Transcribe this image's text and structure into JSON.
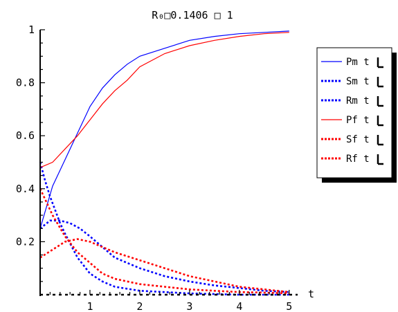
{
  "chart_data": {
    "type": "line",
    "title": "R₀□0.1406 □ 1",
    "xlabel": "t",
    "ylabel": "",
    "xlim": [
      0,
      5.1
    ],
    "ylim": [
      0,
      1
    ],
    "x_ticks": [
      1,
      2,
      3,
      4,
      5
    ],
    "x_tick_labels": [
      "1",
      "2",
      "3",
      "4",
      "5"
    ],
    "y_ticks": [
      0.2,
      0.4,
      0.6,
      0.8,
      1
    ],
    "y_tick_labels": [
      "0.2",
      "0.4",
      "0.6",
      "0.8",
      "1"
    ],
    "legend_position": "right",
    "colors": {
      "blue": "#0000ff",
      "red": "#ff0000"
    },
    "series": [
      {
        "name": "Pm t",
        "color": "#0000ff",
        "style": "solid",
        "x": [
          0,
          0.25,
          0.5,
          0.75,
          1,
          1.25,
          1.5,
          1.75,
          2,
          2.5,
          3,
          3.5,
          4,
          4.5,
          5
        ],
        "y": [
          0.25,
          0.41,
          0.51,
          0.61,
          0.71,
          0.78,
          0.83,
          0.87,
          0.9,
          0.93,
          0.96,
          0.975,
          0.985,
          0.99,
          0.995
        ]
      },
      {
        "name": "Sm t",
        "color": "#0000ff",
        "style": "dashed",
        "x": [
          0,
          0.1,
          0.2,
          0.3,
          0.4,
          0.5,
          0.75,
          1,
          1.25,
          1.5,
          2,
          2.5,
          3,
          4,
          5
        ],
        "y": [
          0.5,
          0.43,
          0.37,
          0.32,
          0.27,
          0.23,
          0.14,
          0.08,
          0.05,
          0.03,
          0.015,
          0.01,
          0.005,
          0.0,
          0.0
        ]
      },
      {
        "name": "Rm t",
        "color": "#0000ff",
        "style": "dashed",
        "x": [
          0,
          0.2,
          0.4,
          0.6,
          0.8,
          1,
          1.25,
          1.5,
          2,
          2.5,
          3,
          3.5,
          4,
          4.5,
          5
        ],
        "y": [
          0.25,
          0.28,
          0.28,
          0.27,
          0.25,
          0.22,
          0.18,
          0.14,
          0.1,
          0.07,
          0.05,
          0.035,
          0.025,
          0.015,
          0.01
        ]
      },
      {
        "name": "Pf t",
        "color": "#ff0000",
        "style": "solid",
        "x": [
          0,
          0.25,
          0.5,
          0.75,
          1,
          1.25,
          1.5,
          1.75,
          2,
          2.5,
          3,
          3.5,
          4,
          4.5,
          5
        ],
        "y": [
          0.48,
          0.5,
          0.55,
          0.6,
          0.66,
          0.72,
          0.77,
          0.81,
          0.86,
          0.91,
          0.94,
          0.96,
          0.975,
          0.985,
          0.99
        ]
      },
      {
        "name": "Sf t",
        "color": "#ff0000",
        "style": "dashed",
        "x": [
          0,
          0.25,
          0.5,
          0.75,
          1,
          1.25,
          1.5,
          2,
          2.5,
          3,
          3.5,
          4,
          4.5,
          5
        ],
        "y": [
          0.4,
          0.3,
          0.22,
          0.16,
          0.12,
          0.08,
          0.06,
          0.04,
          0.03,
          0.02,
          0.015,
          0.01,
          0.008,
          0.005
        ]
      },
      {
        "name": "Rf t",
        "color": "#ff0000",
        "style": "dashed",
        "x": [
          0,
          0.25,
          0.5,
          0.75,
          1,
          1.25,
          1.5,
          2,
          2.5,
          3,
          3.5,
          4,
          4.5,
          5
        ],
        "y": [
          0.14,
          0.17,
          0.2,
          0.21,
          0.2,
          0.18,
          0.16,
          0.13,
          0.1,
          0.07,
          0.05,
          0.03,
          0.02,
          0.01
        ]
      }
    ]
  }
}
